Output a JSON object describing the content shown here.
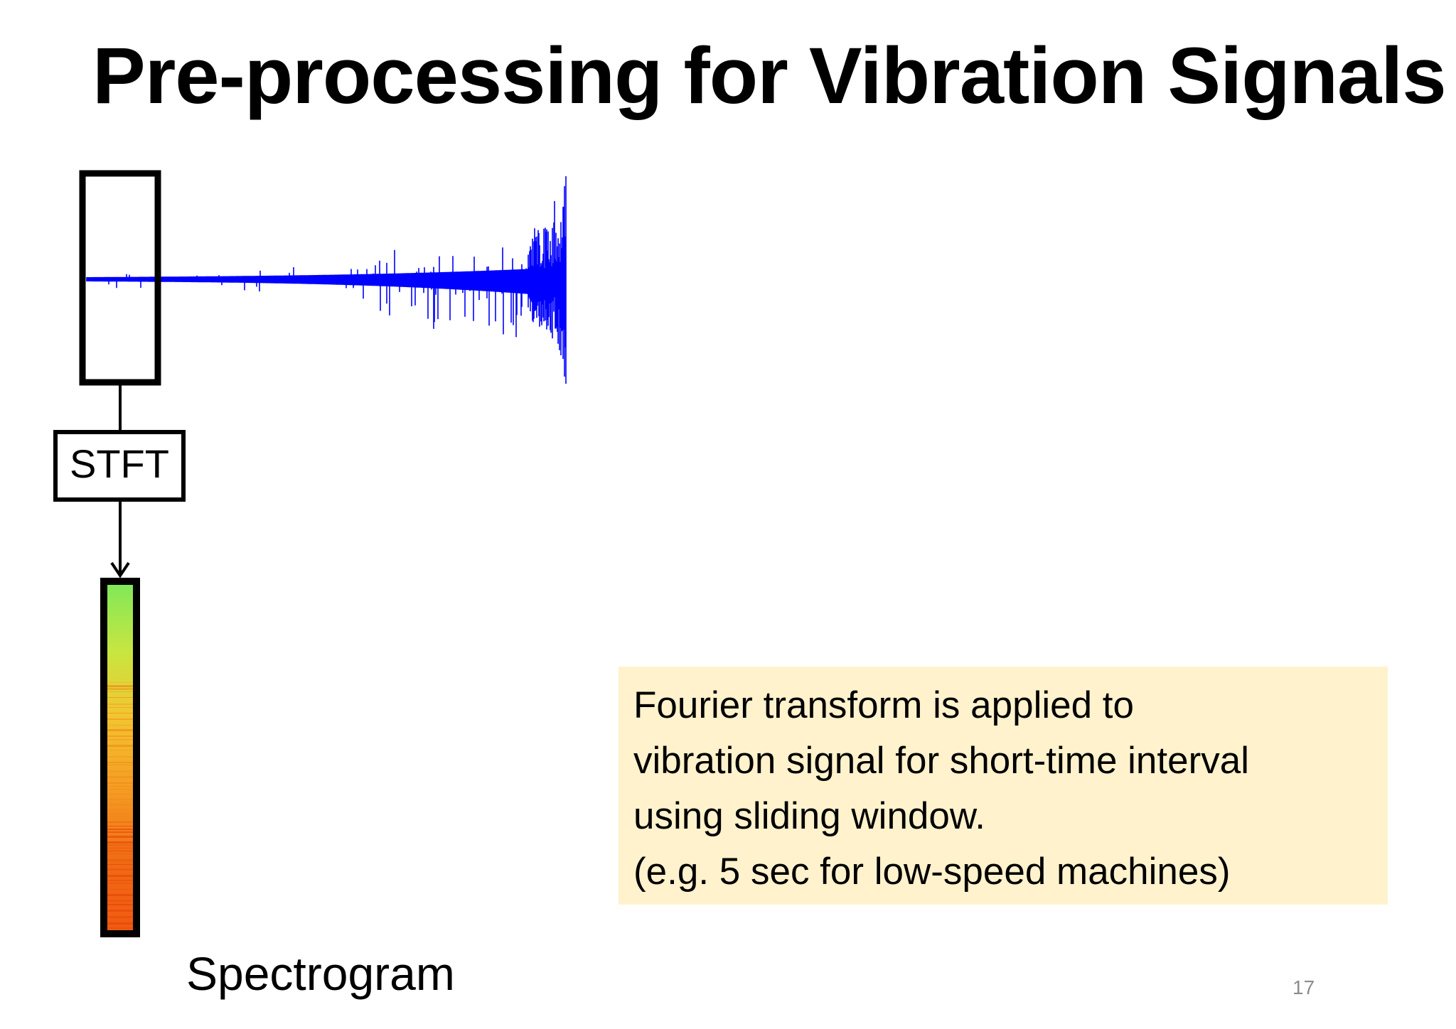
{
  "title": "Pre-processing for Vibration Signals",
  "diagram": {
    "process_label": "STFT",
    "output_label": "Spectrogram"
  },
  "note": {
    "lines": [
      "Fourier transform is applied to",
      "vibration signal for short-time interval",
      "using sliding window.",
      "(e.g. 5 sec for low-speed machines)"
    ]
  },
  "page_number": "17",
  "colors": {
    "signal": "#0000ff",
    "note_background": "#fff2cc",
    "spectrogram_top": "#7ee85a",
    "spectrogram_mid": "#f5c02a",
    "spectrogram_bottom": "#f05a10"
  },
  "icons": {
    "arrow": "arrow-down-icon"
  }
}
